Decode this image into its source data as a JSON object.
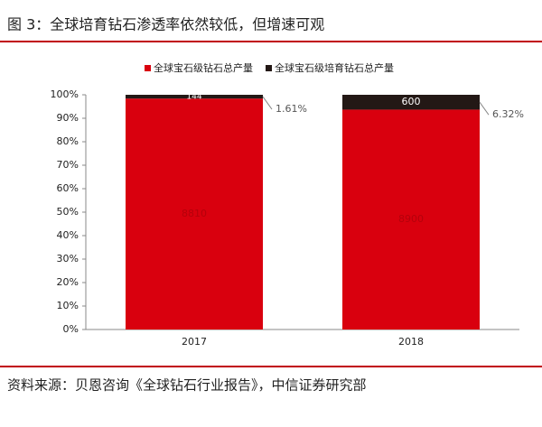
{
  "title": "图 3：全球培育钻石渗透率依然较低，但增速可观",
  "source": "资料来源：贝恩咨询《全球钻石行业报告》，中信证券研究部",
  "chart_data": {
    "type": "bar",
    "stacking": "percent",
    "categories": [
      "2017",
      "2018"
    ],
    "series": [
      {
        "name": "全球宝石级钻石总产量",
        "color": "#d9000e",
        "label_color": "#b5000b",
        "values": [
          8810,
          8900
        ]
      },
      {
        "name": "全球宝石级培育钻石总产量",
        "color": "#231815",
        "label_color": "#ffffff",
        "values": [
          144,
          600
        ]
      }
    ],
    "annotations": [
      "1.61%",
      "6.32%"
    ],
    "ylim": [
      0,
      100
    ],
    "yticks": [
      {
        "value": 0,
        "label": "0%"
      },
      {
        "value": 10,
        "label": "10%"
      },
      {
        "value": 20,
        "label": "20%"
      },
      {
        "value": 30,
        "label": "30%"
      },
      {
        "value": 40,
        "label": "40%"
      },
      {
        "value": 50,
        "label": "50%"
      },
      {
        "value": 60,
        "label": "60%"
      },
      {
        "value": 70,
        "label": "70%"
      },
      {
        "value": 80,
        "label": "80%"
      },
      {
        "value": 90,
        "label": "90%"
      },
      {
        "value": 100,
        "label": "100%"
      }
    ],
    "legend": "top"
  }
}
